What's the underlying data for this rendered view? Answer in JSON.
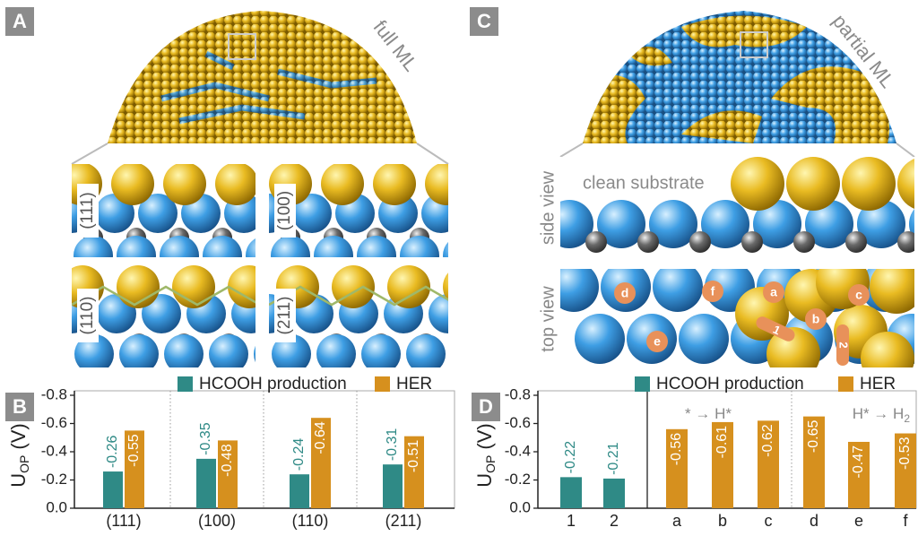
{
  "panels": {
    "A": {
      "label": "A",
      "caption": "full ML",
      "facets": [
        "(111)",
        "(100)",
        "(110)",
        "(211)"
      ]
    },
    "C": {
      "label": "C",
      "caption": "partial ML",
      "side_view": "side view",
      "clean_substrate": "clean substrate",
      "top_view": "top view",
      "sites": [
        "a",
        "b",
        "c",
        "d",
        "e",
        "f"
      ],
      "paths": [
        "1",
        "2"
      ]
    }
  },
  "chart_data": [
    {
      "type": "bar",
      "panel": "B",
      "categories": [
        "(111)",
        "(100)",
        "(110)",
        "(211)"
      ],
      "series": [
        {
          "name": "HCOOH production",
          "color": "#2f8a86",
          "values": [
            -0.26,
            -0.35,
            -0.24,
            -0.31
          ]
        },
        {
          "name": "HER",
          "color": "#d6901e",
          "values": [
            -0.55,
            -0.48,
            -0.64,
            -0.51
          ]
        }
      ],
      "ylabel": {
        "main": "U",
        "sub": "OP",
        "unit": "(V)"
      },
      "ylim": [
        0,
        -0.8
      ],
      "yticks": [
        {
          "value": 0,
          "label": "0.0"
        },
        -0.2,
        -0.4,
        -0.6,
        -0.8
      ]
    },
    {
      "type": "bar",
      "panel": "D",
      "categories": [
        "1",
        "2",
        "a",
        "b",
        "c",
        "d",
        "e",
        "f"
      ],
      "series": [
        {
          "name": "HCOOH production",
          "color": "#2f8a86",
          "values": [
            -0.22,
            -0.21,
            null,
            null,
            null,
            null,
            null,
            null
          ]
        },
        {
          "name": "HER",
          "color": "#d6901e",
          "values": [
            null,
            null,
            -0.56,
            -0.61,
            -0.62,
            -0.65,
            -0.47,
            -0.53
          ]
        }
      ],
      "ylabel": {
        "main": "U",
        "sub": "OP",
        "unit": "(V)"
      },
      "ylim": [
        0,
        -0.8
      ],
      "yticks": [
        {
          "value": 0,
          "label": "0.0"
        },
        -0.2,
        -0.4,
        -0.6,
        -0.8
      ],
      "annotations": [
        {
          "text": "* → H*"
        },
        {
          "text": "H* → H",
          "sub": "2"
        }
      ]
    }
  ]
}
